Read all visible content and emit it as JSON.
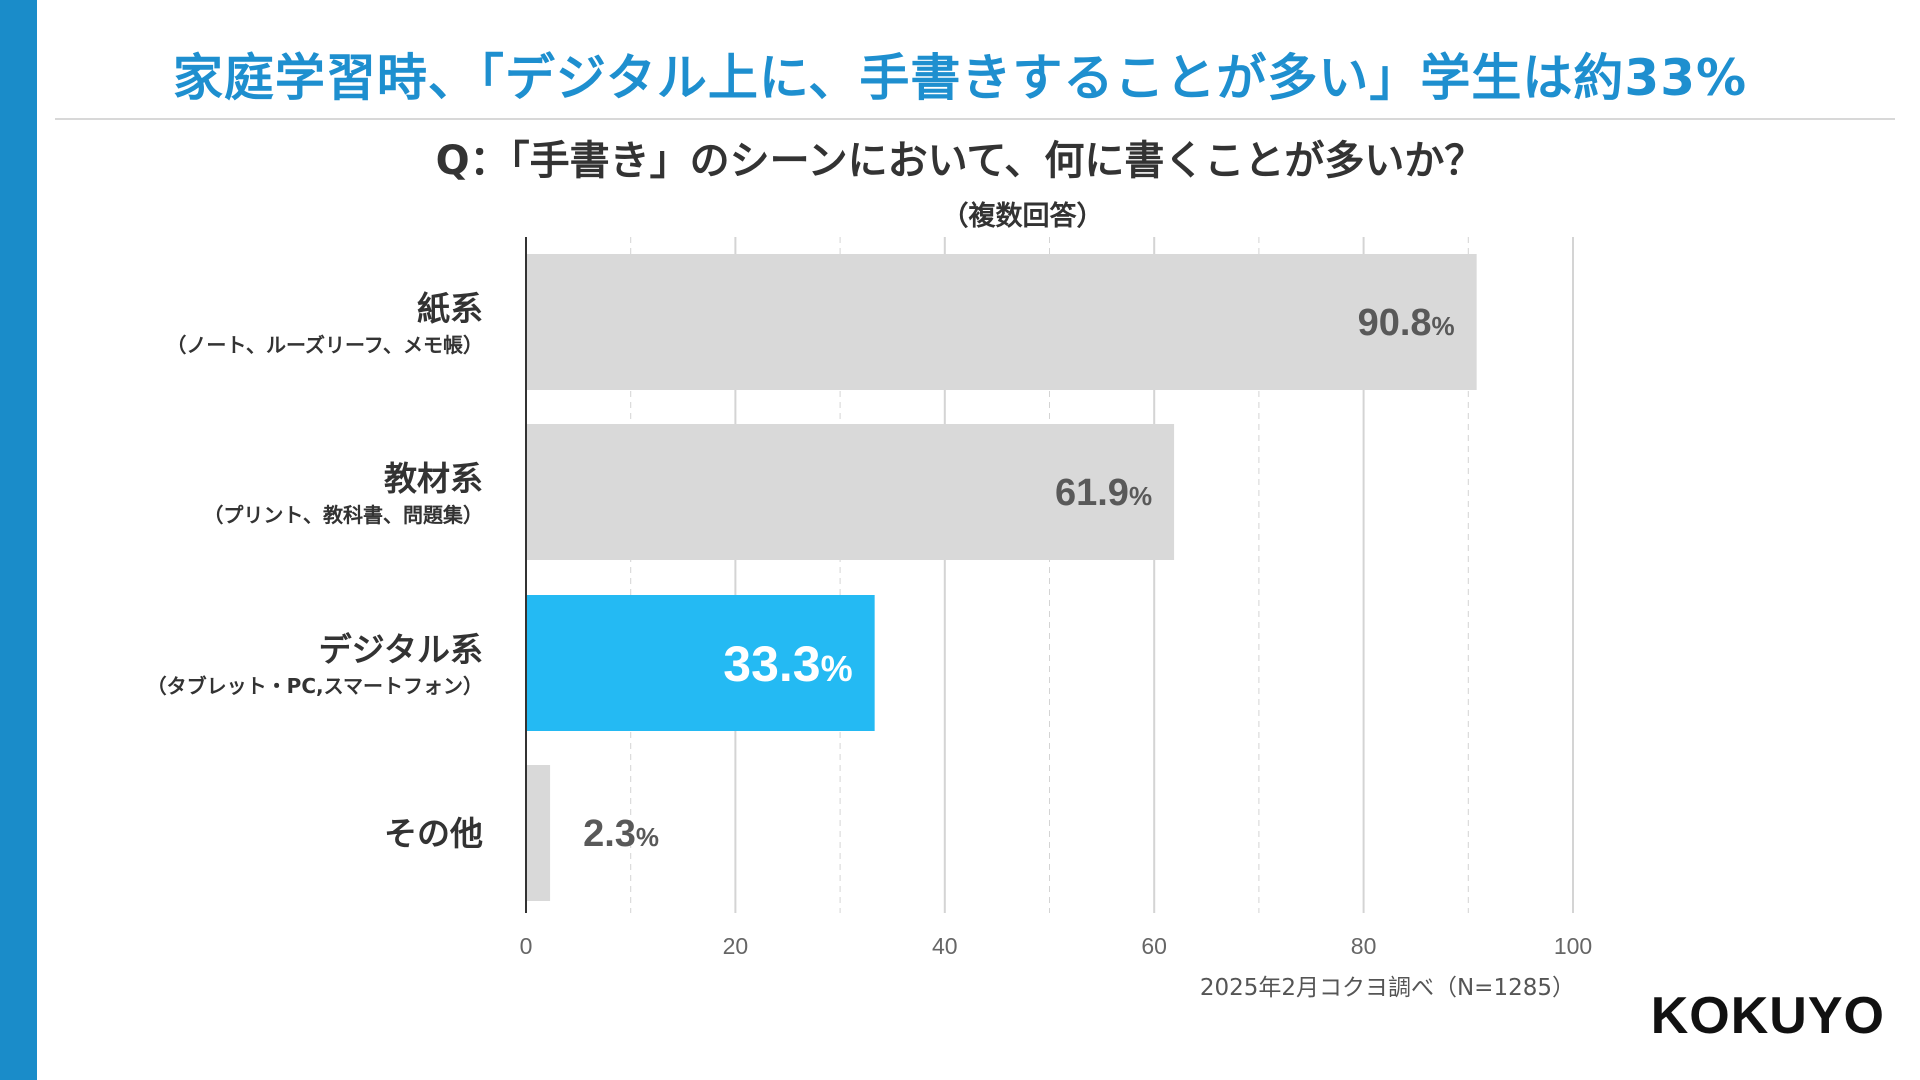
{
  "title": "家庭学習時、「デジタル上に、手書きすることが多い」学生は約33%",
  "question": "Q：「手書き」のシーンにおいて、何に書くことが多いか？",
  "note": "（複数回答）",
  "source": "2025年2月コクヨ調べ（N=1285）",
  "brand": "KOKUYO",
  "chart_data": {
    "type": "bar",
    "orientation": "horizontal",
    "title": "Q：「手書き」のシーンにおいて、何に書くことが多いか？",
    "categories": [
      {
        "label": "紙系",
        "sub": "（ノート、ルーズリーフ、メモ帳）",
        "value": 90.8,
        "value_text": "90.8",
        "unit": "%",
        "highlight": false
      },
      {
        "label": "教材系",
        "sub": "（プリント、教科書、問題集）",
        "value": 61.9,
        "value_text": "61.9",
        "unit": "%",
        "highlight": false
      },
      {
        "label": "デジタル系",
        "sub": "（タブレット・PC,スマートフォン）",
        "value": 33.3,
        "value_text": "33.3",
        "unit": "%",
        "highlight": true
      },
      {
        "label": "その他",
        "sub": "",
        "value": 2.3,
        "value_text": "2.3",
        "unit": "%",
        "highlight": false
      }
    ],
    "xlim": [
      0,
      100
    ],
    "xticks": [
      "0",
      "20",
      "40",
      "60",
      "80",
      "100"
    ],
    "xlabel": "",
    "ylabel": "",
    "colors": {
      "bar": "#d9d9d9",
      "highlight": "#24baf3",
      "label_dark": "#595959",
      "label_light": "#ffffff",
      "category": "#333333",
      "grid": "#d4d4d4",
      "axis": "#333333"
    }
  }
}
